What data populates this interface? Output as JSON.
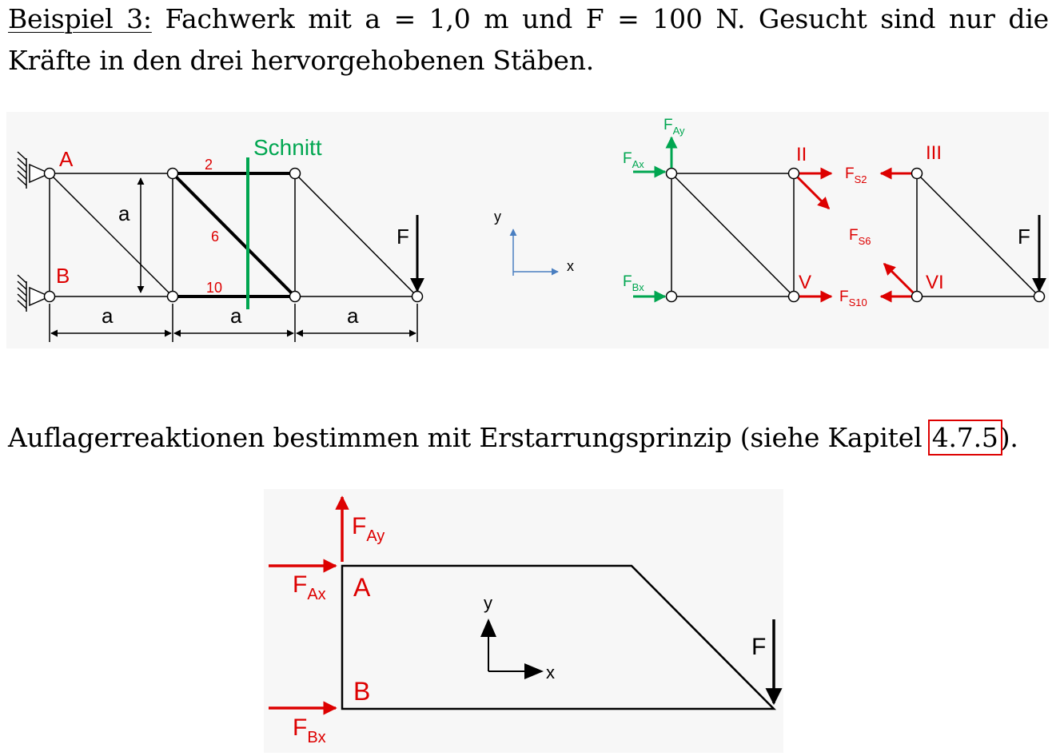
{
  "text": {
    "example_label": "Beispiel 3:",
    "line1_rest": " Fachwerk mit a = 1,0 m und F = 100 N. Gesucht sind nur die",
    "line2": "Kräfte in den drei hervorgehobenen Stäben.",
    "line3_before": "Auflagerreaktionen bestimmen mit Erstarrungsprinzip (siehe Kapitel ",
    "chapter_ref": "4.7.5",
    "line3_after": ")."
  },
  "truss_figure": {
    "support_A": "A",
    "support_B": "B",
    "section_label": "Schnitt",
    "member_2": "2",
    "member_6": "6",
    "member_10": "10",
    "height_label": "a",
    "span_label_1": "a",
    "span_label_2": "a",
    "span_label_3": "a",
    "load_label": "F"
  },
  "axes_small": {
    "x_label": "x",
    "y_label": "y"
  },
  "fbd_figure": {
    "f": "F",
    "ax_sub": "Ax",
    "ay_sub": "Ay",
    "bx_sub": "Bx",
    "s2_sub": "S2",
    "s6_sub": "S6",
    "s10_sub": "S10",
    "node_II": "II",
    "node_III": "III",
    "node_V": "V",
    "node_VI": "VI",
    "load_label": "F"
  },
  "rigid_body_figure": {
    "f": "F",
    "ay_sub": "Ay",
    "ax_sub": "Ax",
    "bx_sub": "Bx",
    "point_A": "A",
    "point_B": "B",
    "y_label": "y",
    "x_label": "x",
    "load_label": "F"
  },
  "colors": {
    "red": "#dd0000",
    "green": "#00a650",
    "axis_blue": "#4a7fc1",
    "black": "#000000"
  }
}
